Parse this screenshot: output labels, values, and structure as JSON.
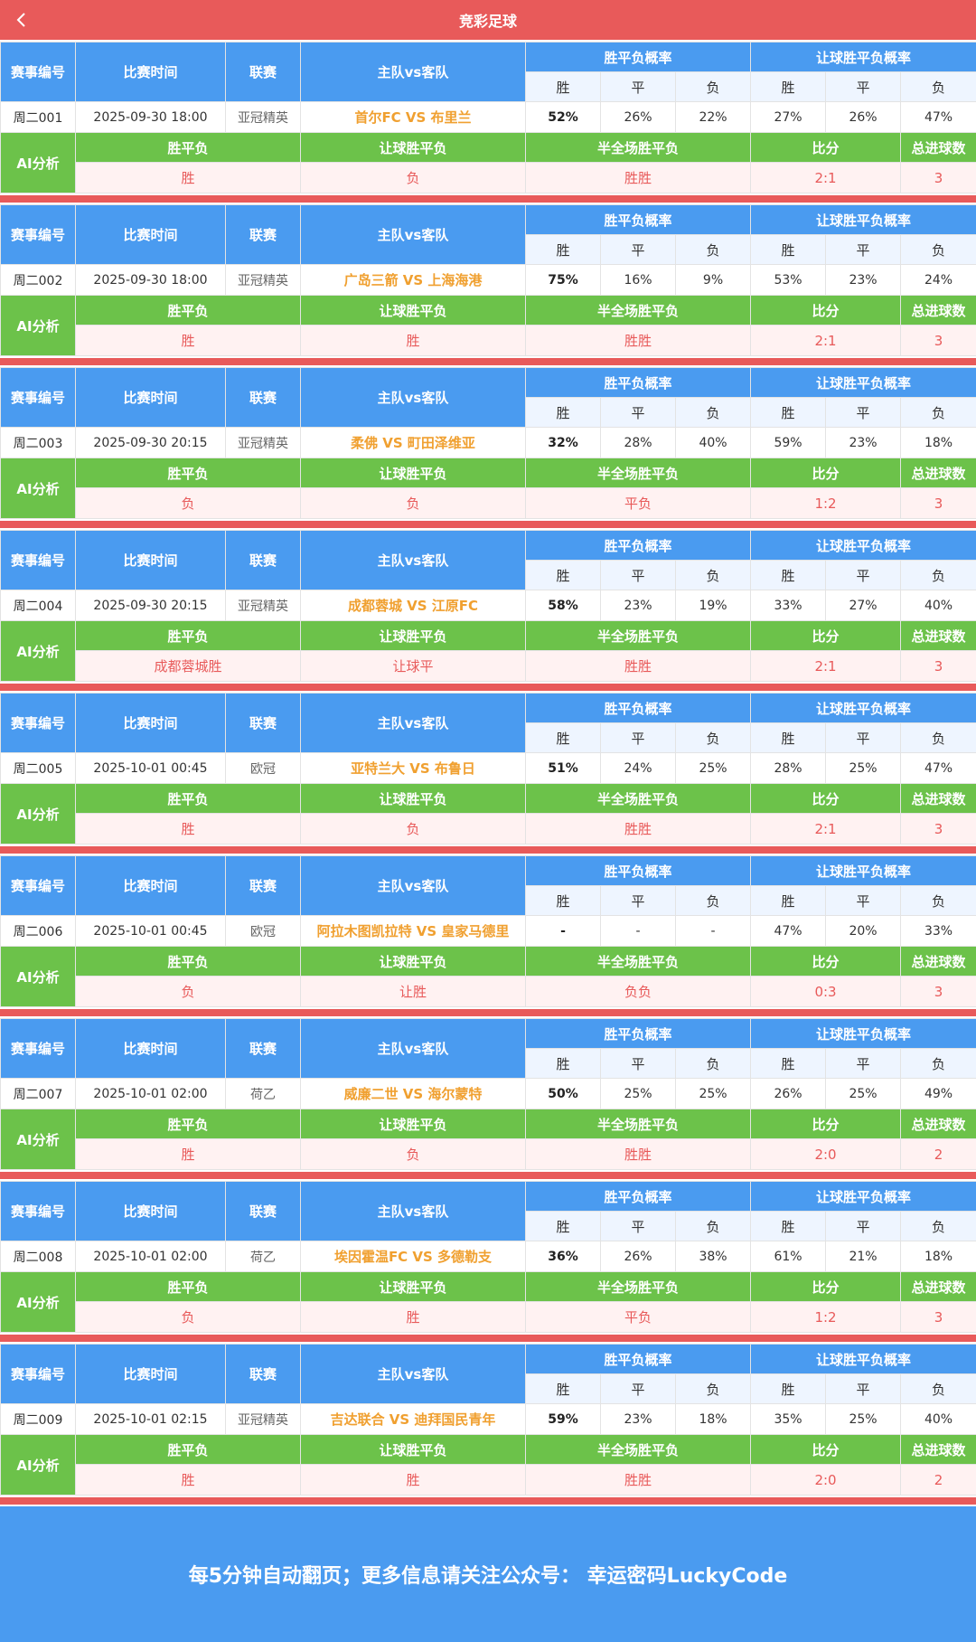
{
  "header": {
    "title": "竞彩足球"
  },
  "labels": {
    "match_no": "赛事编号",
    "time": "比赛时间",
    "league": "联赛",
    "teams": "主队vs客队",
    "prob": "胜平负概率",
    "hprob": "让球胜平负概率",
    "win": "胜",
    "draw": "平",
    "lose": "负",
    "ai": "AI分析",
    "spf": "胜平负",
    "rq": "让球胜平负",
    "half": "半全场胜平负",
    "score": "比分",
    "goals": "总进球数"
  },
  "matches": [
    {
      "id": "周二001",
      "time": "2025-09-30 18:00",
      "league": "亚冠精英",
      "teams": "首尔FC VS 布里兰",
      "prob": [
        "52%",
        "26%",
        "22%"
      ],
      "hprob": [
        "27%",
        "26%",
        "47%"
      ],
      "ai": {
        "spf": "胜",
        "rq": "负",
        "half": "胜胜",
        "score": "2:1",
        "goals": "3"
      }
    },
    {
      "id": "周二002",
      "time": "2025-09-30 18:00",
      "league": "亚冠精英",
      "teams": "广岛三箭 VS 上海海港",
      "prob": [
        "75%",
        "16%",
        "9%"
      ],
      "hprob": [
        "53%",
        "23%",
        "24%"
      ],
      "ai": {
        "spf": "胜",
        "rq": "胜",
        "half": "胜胜",
        "score": "2:1",
        "goals": "3"
      }
    },
    {
      "id": "周二003",
      "time": "2025-09-30 20:15",
      "league": "亚冠精英",
      "teams": "柔佛 VS 町田泽维亚",
      "prob": [
        "32%",
        "28%",
        "40%"
      ],
      "hprob": [
        "59%",
        "23%",
        "18%"
      ],
      "ai": {
        "spf": "负",
        "rq": "负",
        "half": "平负",
        "score": "1:2",
        "goals": "3"
      }
    },
    {
      "id": "周二004",
      "time": "2025-09-30 20:15",
      "league": "亚冠精英",
      "teams": "成都蓉城 VS 江原FC",
      "prob": [
        "58%",
        "23%",
        "19%"
      ],
      "hprob": [
        "33%",
        "27%",
        "40%"
      ],
      "ai": {
        "spf": "成都蓉城胜",
        "rq": "让球平",
        "half": "胜胜",
        "score": "2:1",
        "goals": "3"
      }
    },
    {
      "id": "周二005",
      "time": "2025-10-01 00:45",
      "league": "欧冠",
      "teams": "亚特兰大 VS 布鲁日",
      "prob": [
        "51%",
        "24%",
        "25%"
      ],
      "hprob": [
        "28%",
        "25%",
        "47%"
      ],
      "ai": {
        "spf": "胜",
        "rq": "负",
        "half": "胜胜",
        "score": "2:1",
        "goals": "3"
      }
    },
    {
      "id": "周二006",
      "time": "2025-10-01 00:45",
      "league": "欧冠",
      "teams": "阿拉木图凯拉特 VS 皇家马德里",
      "prob": [
        "-",
        "-",
        "-"
      ],
      "hprob": [
        "47%",
        "20%",
        "33%"
      ],
      "ai": {
        "spf": "负",
        "rq": "让胜",
        "half": "负负",
        "score": "0:3",
        "goals": "3"
      }
    },
    {
      "id": "周二007",
      "time": "2025-10-01 02:00",
      "league": "荷乙",
      "teams": "威廉二世 VS 海尔蒙特",
      "prob": [
        "50%",
        "25%",
        "25%"
      ],
      "hprob": [
        "26%",
        "25%",
        "49%"
      ],
      "ai": {
        "spf": "胜",
        "rq": "负",
        "half": "胜胜",
        "score": "2:0",
        "goals": "2"
      }
    },
    {
      "id": "周二008",
      "time": "2025-10-01 02:00",
      "league": "荷乙",
      "teams": "埃因霍温FC VS 多德勒支",
      "prob": [
        "36%",
        "26%",
        "38%"
      ],
      "hprob": [
        "61%",
        "21%",
        "18%"
      ],
      "ai": {
        "spf": "负",
        "rq": "胜",
        "half": "平负",
        "score": "1:2",
        "goals": "3"
      }
    },
    {
      "id": "周二009",
      "time": "2025-10-01 02:15",
      "league": "亚冠精英",
      "teams": "吉达联合 VS 迪拜国民青年",
      "prob": [
        "59%",
        "23%",
        "18%"
      ],
      "hprob": [
        "35%",
        "25%",
        "40%"
      ],
      "ai": {
        "spf": "胜",
        "rq": "胜",
        "half": "胜胜",
        "score": "2:0",
        "goals": "2"
      }
    }
  ],
  "footer": {
    "text": "每5分钟自动翻页；更多信息请关注公众号： 幸运密码LuckyCode"
  }
}
